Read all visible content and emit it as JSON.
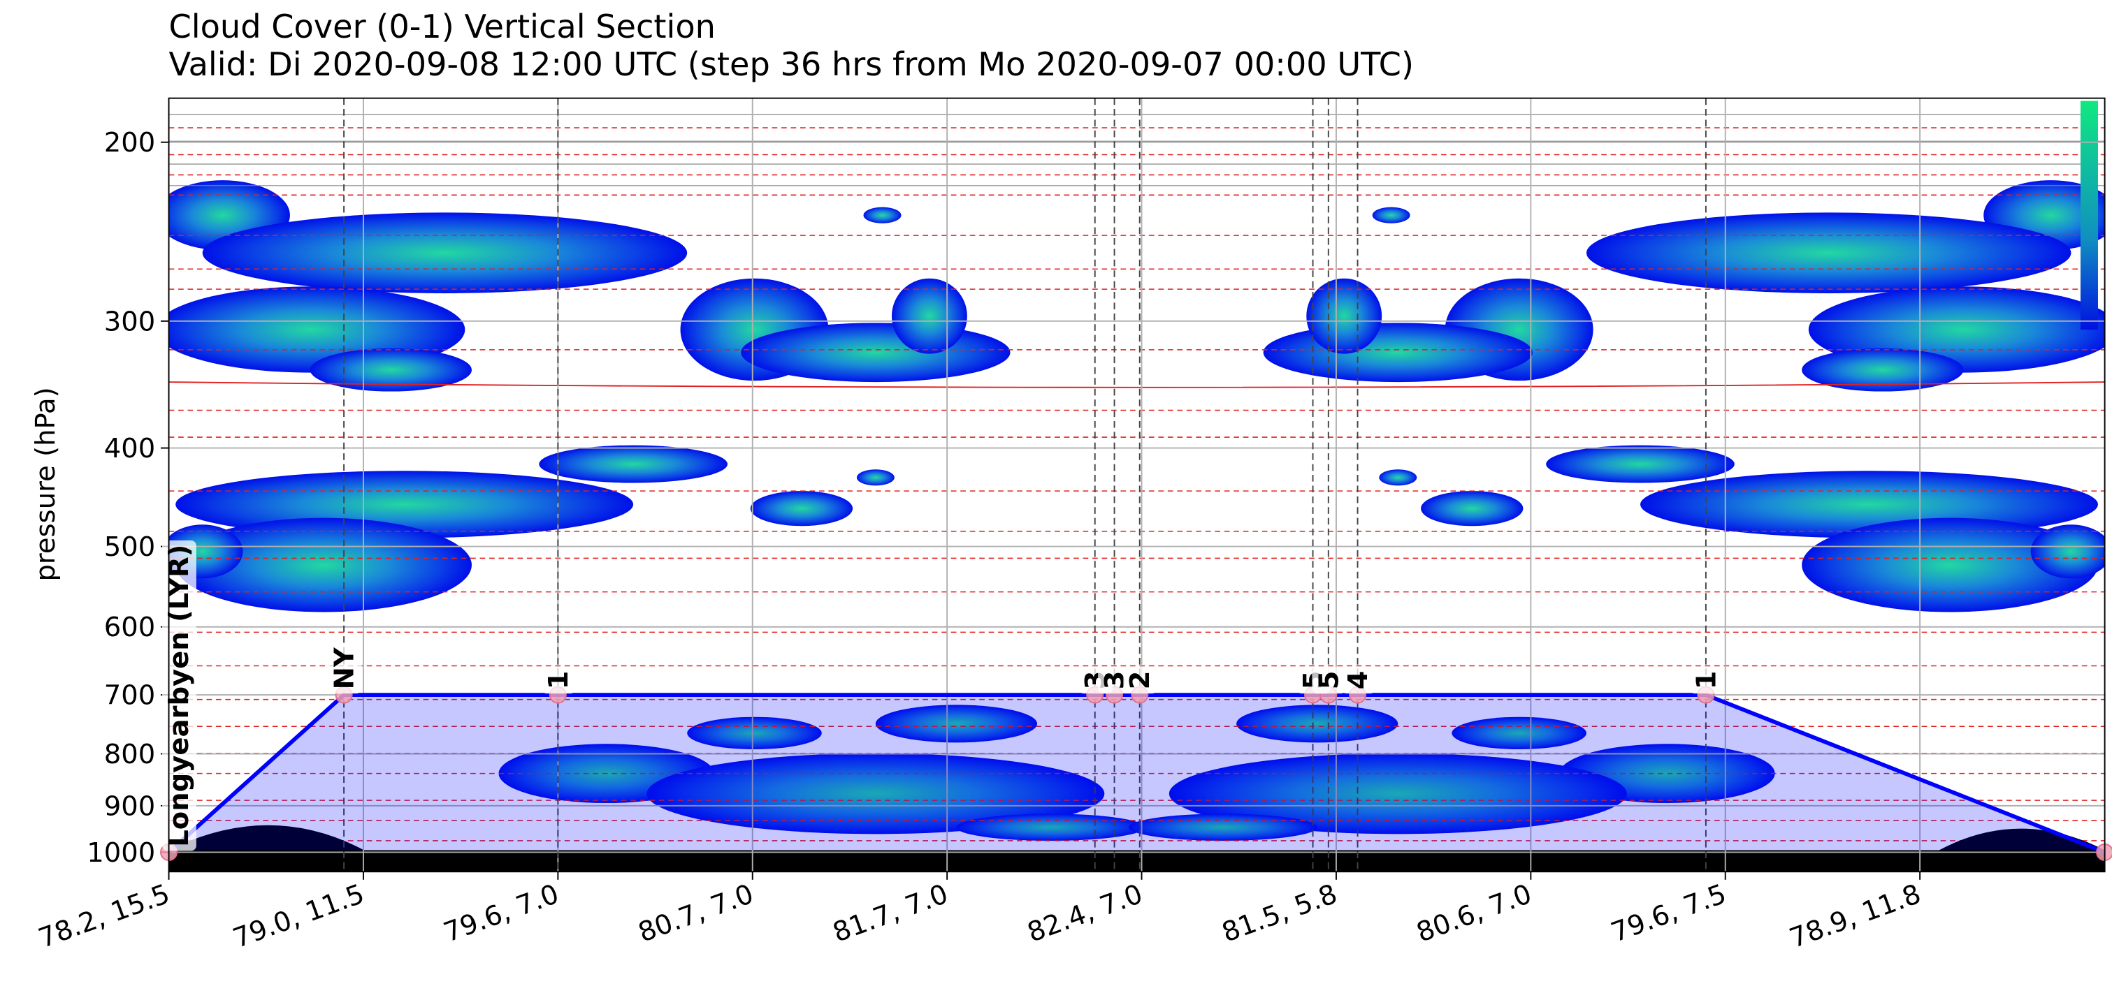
{
  "chart_data": {
    "type": "section",
    "title": "Cloud Cover (0-1) Vertical Section",
    "subtitle": "Valid: Di 2020-09-08 12:00 UTC (step 36 hrs from Mo 2020-09-07 00:00 UTC)",
    "ylabel": "pressure (hPa)",
    "log_y": true,
    "grid": true,
    "ylim": [
      1045,
      181
    ],
    "yticks": [
      200,
      300,
      400,
      500,
      600,
      700,
      800,
      900,
      1000
    ],
    "xlim": [
      0,
      9.95
    ],
    "xticks": [
      {
        "value": 0,
        "label": "78.2, 15.5"
      },
      {
        "value": 1,
        "label": "79.0, 11.5"
      },
      {
        "value": 2,
        "label": "79.6, 7.0"
      },
      {
        "value": 3,
        "label": "80.7, 7.0"
      },
      {
        "value": 4,
        "label": "81.7, 7.0"
      },
      {
        "value": 5,
        "label": "82.4, 7.0"
      },
      {
        "value": 6,
        "label": "81.5, 5.8"
      },
      {
        "value": 7,
        "label": "80.6, 7.0"
      },
      {
        "value": 8,
        "label": "79.6, 7.5"
      },
      {
        "value": 9,
        "label": "78.9, 11.8"
      }
    ],
    "series": [
      {
        "color": "#0000ff",
        "x": [
          0,
          0.9,
          2.0,
          4.76,
          4.86,
          4.99,
          5.88,
          5.96,
          6.11,
          7.9,
          9.95
        ],
        "values": [
          1000,
          700,
          700,
          700,
          700,
          700,
          700,
          700,
          700,
          700,
          1000
        ]
      }
    ],
    "waypoint_labels": [
      {
        "text": "Longyearbyen (LYR)",
        "x": 0.05,
        "pressure": 1000
      },
      {
        "text": "NY",
        "x": 0.9,
        "pressure": 700
      },
      {
        "text": "1",
        "x": 2.0,
        "pressure": 700
      },
      {
        "text": "3",
        "x": 4.76,
        "pressure": 700
      },
      {
        "text": "3",
        "x": 4.86,
        "pressure": 700
      },
      {
        "text": "2",
        "x": 4.99,
        "pressure": 700
      },
      {
        "text": "5",
        "x": 5.88,
        "pressure": 700
      },
      {
        "text": "5",
        "x": 5.96,
        "pressure": 700
      },
      {
        "text": "4",
        "x": 6.11,
        "pressure": 700
      },
      {
        "text": "1",
        "x": 7.9,
        "pressure": 700
      }
    ]
  }
}
